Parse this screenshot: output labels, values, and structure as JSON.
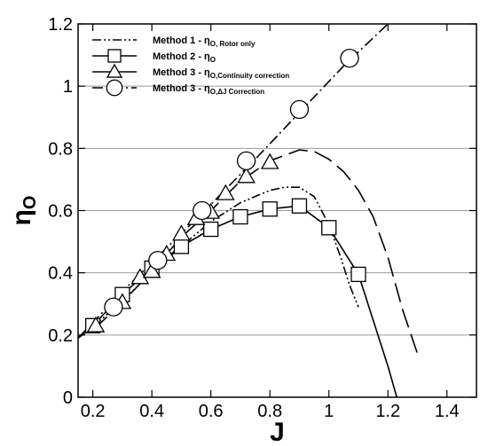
{
  "chart_data": {
    "type": "line",
    "xlabel": "J",
    "ylabel": "η",
    "ylabel_sub": "O",
    "xlim": [
      0.15,
      1.5
    ],
    "ylim": [
      0,
      1.2
    ],
    "xticks": [
      0.2,
      0.4,
      0.6,
      0.8,
      1,
      1.2,
      1.4
    ],
    "xtick_labels": [
      "0.2",
      "0.4",
      "0.6",
      "0.8",
      "1",
      "1.2",
      "1.4"
    ],
    "yticks": [
      0,
      0.2,
      0.4,
      0.6,
      0.8,
      1,
      1.2
    ],
    "ytick_labels": [
      "0",
      "0.2",
      "0.4",
      "0.6",
      "0.8",
      "1",
      "1.2"
    ],
    "grid": "horizontal",
    "legend_position": "top-left",
    "series": [
      {
        "key": "m1",
        "label_main": "Method 1 - η",
        "label_sub": "O, Rotor only",
        "line_style": "dash-dot-dot",
        "marker": "none",
        "x": [
          0.15,
          0.2,
          0.3,
          0.4,
          0.5,
          0.6,
          0.7,
          0.8,
          0.85,
          0.9,
          0.95,
          1.0,
          1.04,
          1.07,
          1.1
        ],
        "y": [
          0.19,
          0.225,
          0.31,
          0.4,
          0.485,
          0.565,
          0.625,
          0.665,
          0.675,
          0.675,
          0.645,
          0.555,
          0.45,
          0.36,
          0.29
        ]
      },
      {
        "key": "m2",
        "label_main": "Method 2 - η",
        "label_sub": "O",
        "line_style": "solid",
        "marker": "square",
        "x": [
          0.2,
          0.3,
          0.4,
          0.5,
          0.6,
          0.7,
          0.8,
          0.9,
          1.0,
          1.1,
          1.2,
          1.23
        ],
        "y": [
          0.23,
          0.33,
          0.415,
          0.485,
          0.54,
          0.58,
          0.605,
          0.615,
          0.545,
          0.395,
          0.1,
          0.0
        ],
        "markers_x": [
          0.2,
          0.3,
          0.4,
          0.5,
          0.6,
          0.7,
          0.8,
          0.9,
          1.0,
          1.1
        ],
        "markers_y": [
          0.23,
          0.33,
          0.415,
          0.485,
          0.54,
          0.58,
          0.605,
          0.615,
          0.545,
          0.395
        ]
      },
      {
        "key": "m3c",
        "label_main": "Method 3 - η",
        "label_sub": "O,Continuity correction",
        "line_style": "long-dash",
        "marker": "triangle",
        "x": [
          0.2,
          0.3,
          0.4,
          0.5,
          0.6,
          0.7,
          0.8,
          0.9,
          0.95,
          1.0,
          1.05,
          1.1,
          1.15,
          1.2,
          1.25,
          1.3
        ],
        "y": [
          0.215,
          0.305,
          0.405,
          0.515,
          0.6,
          0.695,
          0.76,
          0.795,
          0.79,
          0.765,
          0.725,
          0.665,
          0.58,
          0.45,
          0.28,
          0.14
        ],
        "markers_x": [
          0.21,
          0.3,
          0.36,
          0.4,
          0.45,
          0.5,
          0.55,
          0.6,
          0.65,
          0.72,
          0.8
        ],
        "markers_y": [
          0.23,
          0.305,
          0.385,
          0.405,
          0.46,
          0.525,
          0.575,
          0.595,
          0.655,
          0.71,
          0.755
        ]
      },
      {
        "key": "m3dj",
        "label_main": "Method 3 - η",
        "label_sub": "O,ΔJ Correction",
        "line_style": "dash-dot",
        "marker": "circle",
        "x": [
          0.15,
          0.3,
          0.45,
          0.6,
          0.75,
          0.9,
          1.05,
          1.2,
          1.28
        ],
        "y": [
          0.19,
          0.34,
          0.48,
          0.62,
          0.765,
          0.915,
          1.065,
          1.2,
          1.28
        ],
        "markers_x": [
          0.27,
          0.42,
          0.57,
          0.72,
          0.9,
          1.07
        ],
        "markers_y": [
          0.29,
          0.44,
          0.6,
          0.76,
          0.925,
          1.09
        ]
      }
    ]
  }
}
